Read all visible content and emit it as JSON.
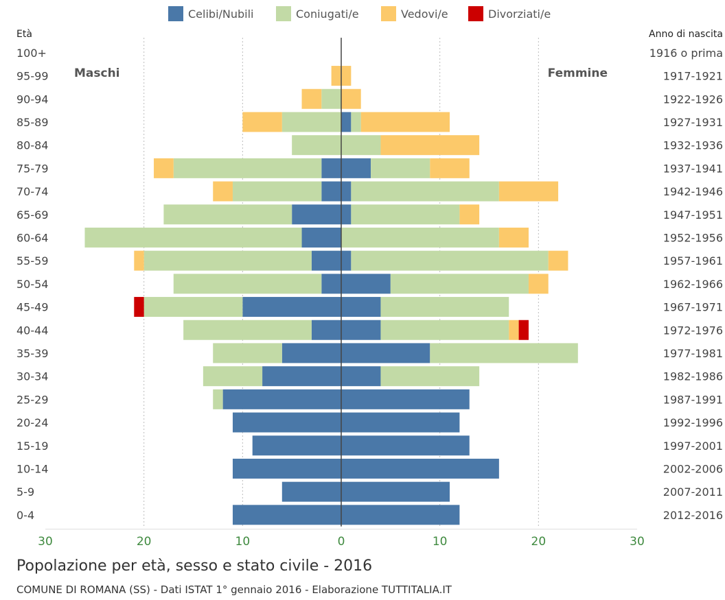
{
  "chart_data": {
    "type": "bar",
    "orientation": "horizontal-pyramid",
    "title": "Popolazione per età, sesso e stato civile - 2016",
    "subtitle": "COMUNE DI ROMANA (SS) - Dati ISTAT 1° gennaio 2016 - Elaborazione TUTTITALIA.IT",
    "ylabel_left": "Età",
    "ylabel_right": "Anno di nascita",
    "left_label": "Maschi",
    "right_label": "Femmine",
    "xlim": [
      -30,
      30
    ],
    "xticks": [
      -30,
      -20,
      -10,
      0,
      10,
      20,
      30
    ],
    "xtick_labels": [
      "30",
      "20",
      "10",
      "0",
      "10",
      "20",
      "30"
    ],
    "legend_position": "top",
    "grid": true,
    "categories": [
      "100+",
      "95-99",
      "90-94",
      "85-89",
      "80-84",
      "75-79",
      "70-74",
      "65-69",
      "60-64",
      "55-59",
      "50-54",
      "45-49",
      "40-44",
      "35-39",
      "30-34",
      "25-29",
      "20-24",
      "15-19",
      "10-14",
      "5-9",
      "0-4"
    ],
    "birth_years": [
      "1916 o prima",
      "1917-1921",
      "1922-1926",
      "1927-1931",
      "1932-1936",
      "1937-1941",
      "1942-1946",
      "1947-1951",
      "1952-1956",
      "1957-1961",
      "1962-1966",
      "1967-1971",
      "1972-1976",
      "1977-1981",
      "1982-1986",
      "1987-1991",
      "1992-1996",
      "1997-2001",
      "2002-2006",
      "2007-2011",
      "2012-2016"
    ],
    "series": [
      {
        "name": "Celibi/Nubili",
        "color": "#4a78a8",
        "male": [
          0,
          0,
          0,
          0,
          0,
          2,
          2,
          5,
          4,
          3,
          2,
          10,
          3,
          6,
          8,
          12,
          11,
          9,
          11,
          6,
          11
        ],
        "female": [
          0,
          0,
          0,
          1,
          0,
          3,
          1,
          1,
          0,
          1,
          5,
          4,
          4,
          9,
          4,
          13,
          12,
          13,
          16,
          11,
          12
        ]
      },
      {
        "name": "Coniugati/e",
        "color": "#c2daa6",
        "male": [
          0,
          0,
          2,
          6,
          5,
          15,
          9,
          13,
          22,
          17,
          15,
          10,
          13,
          7,
          6,
          1,
          0,
          0,
          0,
          0,
          0
        ],
        "female": [
          0,
          0,
          0,
          1,
          4,
          6,
          15,
          11,
          16,
          20,
          14,
          13,
          13,
          15,
          10,
          0,
          0,
          0,
          0,
          0,
          0
        ]
      },
      {
        "name": "Vedovi/e",
        "color": "#fcc96a",
        "male": [
          0,
          1,
          2,
          4,
          0,
          2,
          2,
          0,
          0,
          1,
          0,
          0,
          0,
          0,
          0,
          0,
          0,
          0,
          0,
          0,
          0
        ],
        "female": [
          0,
          1,
          2,
          9,
          10,
          4,
          6,
          2,
          3,
          2,
          2,
          0,
          1,
          0,
          0,
          0,
          0,
          0,
          0,
          0,
          0
        ]
      },
      {
        "name": "Divorziati/e",
        "color": "#cc0000",
        "male": [
          0,
          0,
          0,
          0,
          0,
          0,
          0,
          0,
          0,
          0,
          0,
          1,
          0,
          0,
          0,
          0,
          0,
          0,
          0,
          0,
          0
        ],
        "female": [
          0,
          0,
          0,
          0,
          0,
          0,
          0,
          0,
          0,
          0,
          0,
          0,
          1,
          0,
          0,
          0,
          0,
          0,
          0,
          0,
          0
        ]
      }
    ]
  }
}
